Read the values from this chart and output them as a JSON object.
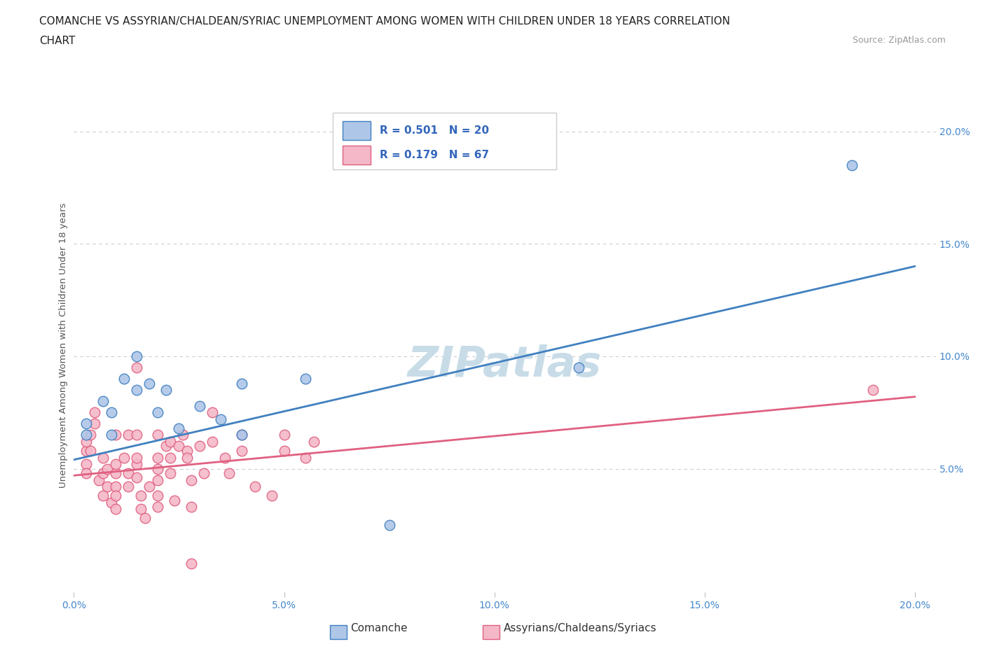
{
  "title_line1": "COMANCHE VS ASSYRIAN/CHALDEAN/SYRIAC UNEMPLOYMENT AMONG WOMEN WITH CHILDREN UNDER 18 YEARS CORRELATION",
  "title_line2": "CHART",
  "source_text": "Source: ZipAtlas.com",
  "ylabel": "Unemployment Among Women with Children Under 18 years",
  "xlim": [
    0.0,
    0.205
  ],
  "ylim": [
    -0.005,
    0.215
  ],
  "xticks": [
    0.0,
    0.05,
    0.1,
    0.15,
    0.2
  ],
  "yticks": [
    0.05,
    0.1,
    0.15,
    0.2
  ],
  "ytick_labels": [
    "5.0%",
    "10.0%",
    "15.0%",
    "20.0%"
  ],
  "xtick_labels": [
    "0.0%",
    "5.0%",
    "10.0%",
    "15.0%",
    "20.0%"
  ],
  "bg_color": "#ffffff",
  "plot_bg_color": "#ffffff",
  "grid_color": "#cccccc",
  "watermark_text": "ZIPatlas",
  "watermark_color": "#c8dce8",
  "comanche_color": "#aec6e8",
  "assyrian_color": "#f4b8c8",
  "comanche_line_color": "#4080c0",
  "assyrian_line_color": "#e06080",
  "R_comanche": 0.501,
  "N_comanche": 20,
  "R_assyrian": 0.179,
  "N_assyrian": 67,
  "comanche_reg": [
    0.054,
    0.14
  ],
  "assyrian_reg": [
    0.047,
    0.082
  ],
  "comanche_scatter": [
    [
      0.003,
      0.07
    ],
    [
      0.003,
      0.065
    ],
    [
      0.007,
      0.08
    ],
    [
      0.009,
      0.075
    ],
    [
      0.009,
      0.065
    ],
    [
      0.012,
      0.09
    ],
    [
      0.015,
      0.1
    ],
    [
      0.015,
      0.085
    ],
    [
      0.018,
      0.088
    ],
    [
      0.02,
      0.075
    ],
    [
      0.022,
      0.085
    ],
    [
      0.025,
      0.068
    ],
    [
      0.03,
      0.078
    ],
    [
      0.035,
      0.072
    ],
    [
      0.04,
      0.088
    ],
    [
      0.04,
      0.065
    ],
    [
      0.055,
      0.09
    ],
    [
      0.075,
      0.025
    ],
    [
      0.12,
      0.095
    ],
    [
      0.185,
      0.185
    ]
  ],
  "assyrian_scatter": [
    [
      0.003,
      0.052
    ],
    [
      0.003,
      0.058
    ],
    [
      0.003,
      0.048
    ],
    [
      0.003,
      0.062
    ],
    [
      0.004,
      0.065
    ],
    [
      0.004,
      0.058
    ],
    [
      0.005,
      0.07
    ],
    [
      0.005,
      0.075
    ],
    [
      0.006,
      0.045
    ],
    [
      0.007,
      0.055
    ],
    [
      0.007,
      0.048
    ],
    [
      0.007,
      0.038
    ],
    [
      0.008,
      0.05
    ],
    [
      0.008,
      0.042
    ],
    [
      0.009,
      0.035
    ],
    [
      0.01,
      0.048
    ],
    [
      0.01,
      0.052
    ],
    [
      0.01,
      0.042
    ],
    [
      0.01,
      0.065
    ],
    [
      0.01,
      0.038
    ],
    [
      0.01,
      0.032
    ],
    [
      0.012,
      0.055
    ],
    [
      0.013,
      0.065
    ],
    [
      0.013,
      0.048
    ],
    [
      0.013,
      0.042
    ],
    [
      0.015,
      0.052
    ],
    [
      0.015,
      0.095
    ],
    [
      0.015,
      0.055
    ],
    [
      0.015,
      0.046
    ],
    [
      0.015,
      0.065
    ],
    [
      0.016,
      0.038
    ],
    [
      0.016,
      0.032
    ],
    [
      0.017,
      0.028
    ],
    [
      0.018,
      0.042
    ],
    [
      0.02,
      0.065
    ],
    [
      0.02,
      0.055
    ],
    [
      0.02,
      0.05
    ],
    [
      0.02,
      0.045
    ],
    [
      0.02,
      0.038
    ],
    [
      0.02,
      0.033
    ],
    [
      0.022,
      0.06
    ],
    [
      0.023,
      0.062
    ],
    [
      0.023,
      0.055
    ],
    [
      0.023,
      0.048
    ],
    [
      0.024,
      0.036
    ],
    [
      0.025,
      0.06
    ],
    [
      0.026,
      0.065
    ],
    [
      0.027,
      0.058
    ],
    [
      0.027,
      0.055
    ],
    [
      0.028,
      0.045
    ],
    [
      0.028,
      0.033
    ],
    [
      0.028,
      0.008
    ],
    [
      0.03,
      0.06
    ],
    [
      0.031,
      0.048
    ],
    [
      0.033,
      0.062
    ],
    [
      0.033,
      0.075
    ],
    [
      0.036,
      0.055
    ],
    [
      0.037,
      0.048
    ],
    [
      0.04,
      0.065
    ],
    [
      0.04,
      0.058
    ],
    [
      0.043,
      0.042
    ],
    [
      0.047,
      0.038
    ],
    [
      0.05,
      0.065
    ],
    [
      0.05,
      0.058
    ],
    [
      0.055,
      0.055
    ],
    [
      0.057,
      0.062
    ],
    [
      0.19,
      0.085
    ]
  ]
}
